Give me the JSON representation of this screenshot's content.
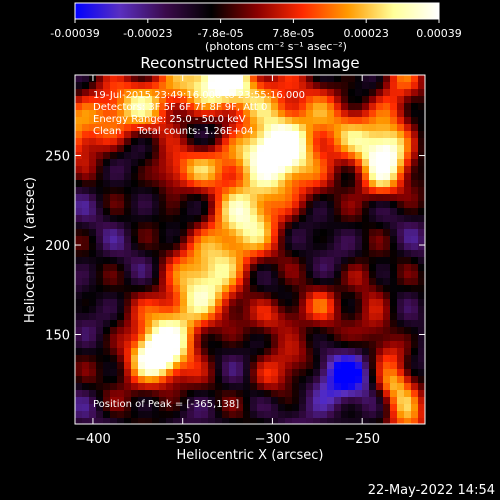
{
  "chart_data": {
    "type": "heatmap",
    "title": "Reconstructed RHESSI Image",
    "xlabel": "Heliocentric X (arcsec)",
    "ylabel": "Heliocentric Y (arcsec)",
    "xlim": [
      -410,
      -215
    ],
    "ylim": [
      100,
      295
    ],
    "xticks": [
      -400,
      -350,
      -300,
      -250
    ],
    "yticks": [
      150,
      200,
      250
    ],
    "colorbar": {
      "min": -0.00039,
      "max": 0.00039,
      "ticks": [
        "-0.00039",
        "-0.00023",
        "-7.8e-05",
        "7.8e-05",
        "0.00023",
        "0.00039"
      ],
      "unit": "(photons cm⁻² s⁻¹ asec⁻²)",
      "colormap": [
        "#0000ff",
        "#5a2fbf",
        "#3a0a4a",
        "#000000",
        "#8a0000",
        "#ff2a00",
        "#ff9a00",
        "#ffff9a",
        "#ffffff"
      ]
    },
    "annotations": {
      "time_range": "19-Jul-2015 23:49:16.000 to 23:55:16.000",
      "detectors": "Detectors: 3F 5F 6F 7F 8F 9F, Att 0",
      "energy_range": "Energy Range: 25.0 - 50.0 keV",
      "method_counts": "Clean     Total counts: 1.26E+04",
      "peak": "Position of Peak = [-365,138]"
    },
    "peak": {
      "x": -365,
      "y": 138
    }
  },
  "footer": {
    "date": "22-May-2022 14:54"
  }
}
